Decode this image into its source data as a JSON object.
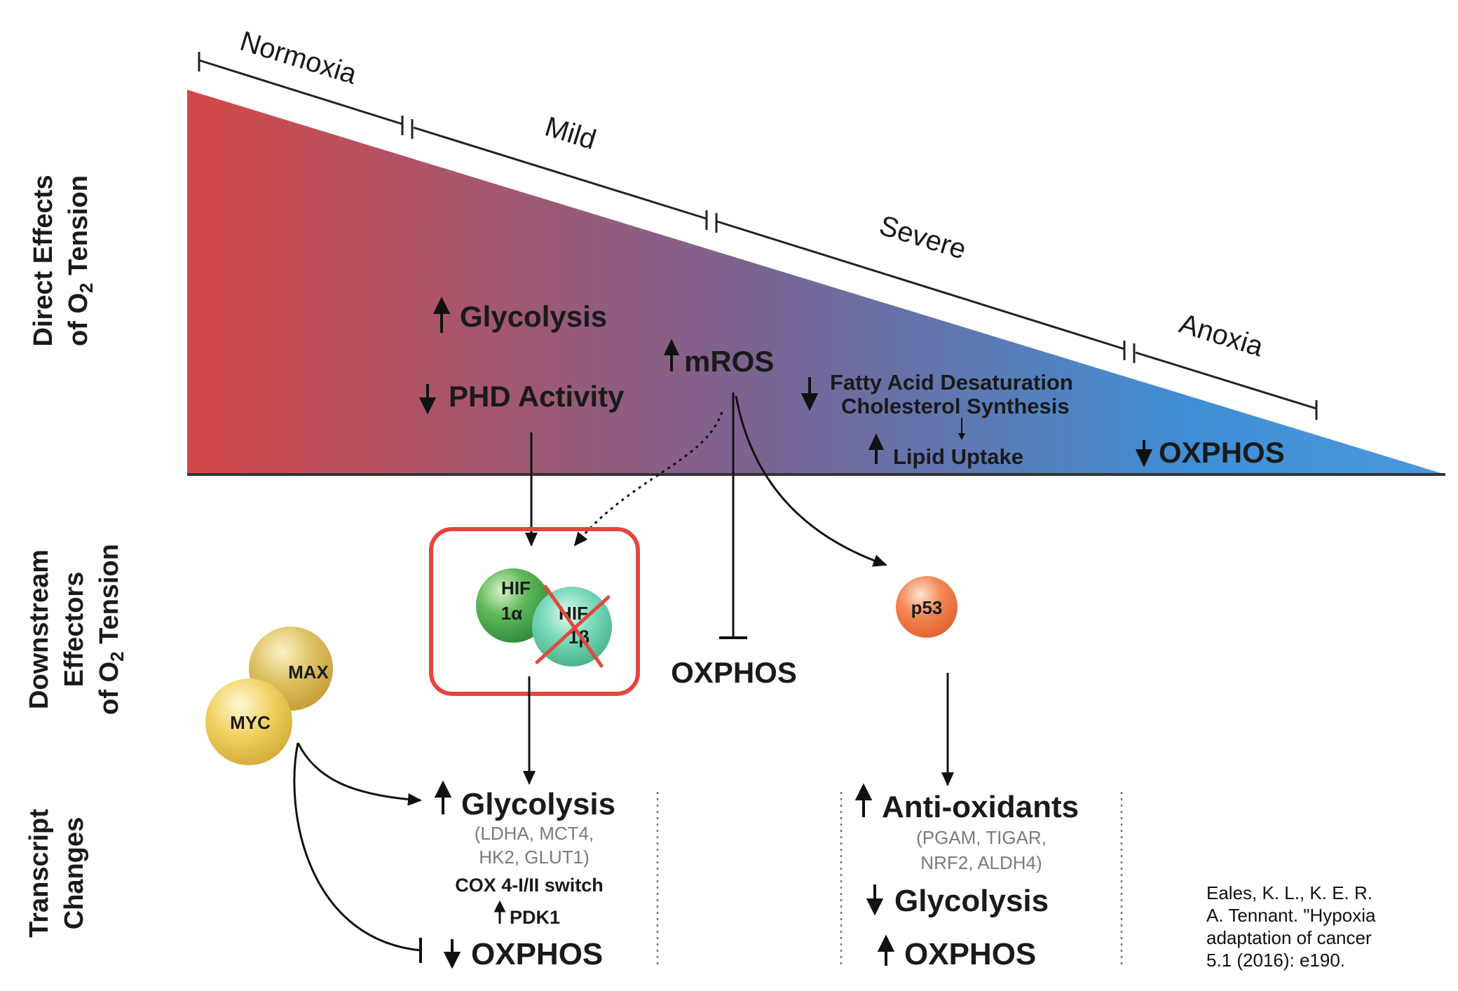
{
  "row_labels": {
    "direct": [
      "Direct Effects",
      "of O",
      "2",
      " Tension"
    ],
    "downstream": [
      "Downstream",
      "Effectors",
      "of O",
      "2",
      " Tension"
    ],
    "transcript": [
      "Transcript",
      "Changes"
    ]
  },
  "zones": [
    "Normoxia",
    "Mild",
    "Severe",
    "Anoxia"
  ],
  "direct_effects": {
    "glycolysis": "Glycolysis",
    "phd": "PHD Activity",
    "mros": "mROS",
    "fatty_acid": "Fatty Acid Desaturation",
    "cholesterol": "Cholesterol Synthesis",
    "lipid_uptake": "Lipid Uptake",
    "oxphos": "OXPHOS"
  },
  "effectors": {
    "hif1a": [
      "HIF",
      "1α"
    ],
    "hif1b": [
      "HIF",
      "1β"
    ],
    "max": "MAX",
    "myc": "MYC",
    "p53": "p53",
    "oxphos": "OXPHOS"
  },
  "transcript_left": {
    "glycolysis": "Glycolysis",
    "genes_line1": "(LDHA, MCT4,",
    "genes_line2": "HK2, GLUT1)",
    "cox": "COX 4-I/II switch",
    "pdk1": "PDK1",
    "oxphos": "OXPHOS"
  },
  "transcript_right": {
    "antioxidants": "Anti-oxidants",
    "genes_line1": "(PGAM, TIGAR,",
    "genes_line2": "NRF2, ALDH4)",
    "glycolysis": "Glycolysis",
    "oxphos": "OXPHOS"
  },
  "citation": [
    "Eales, K. L., K. E. R.",
    "A. Tennant. \"Hypoxia",
    "adaptation of cancer",
    "5.1 (2016): e190."
  ],
  "colors": {
    "gradient_red": "#d44848",
    "gradient_purple": "#7b6391",
    "gradient_blue": "#3f8fd6",
    "highlight_box": "#e8443c",
    "cross": "#e04a3c",
    "hif1a": "#3f9a47",
    "hif1b": "#5ac6a4",
    "max": "#d8b64e",
    "myc": "#e3c34a",
    "p53": "#ec7442"
  }
}
